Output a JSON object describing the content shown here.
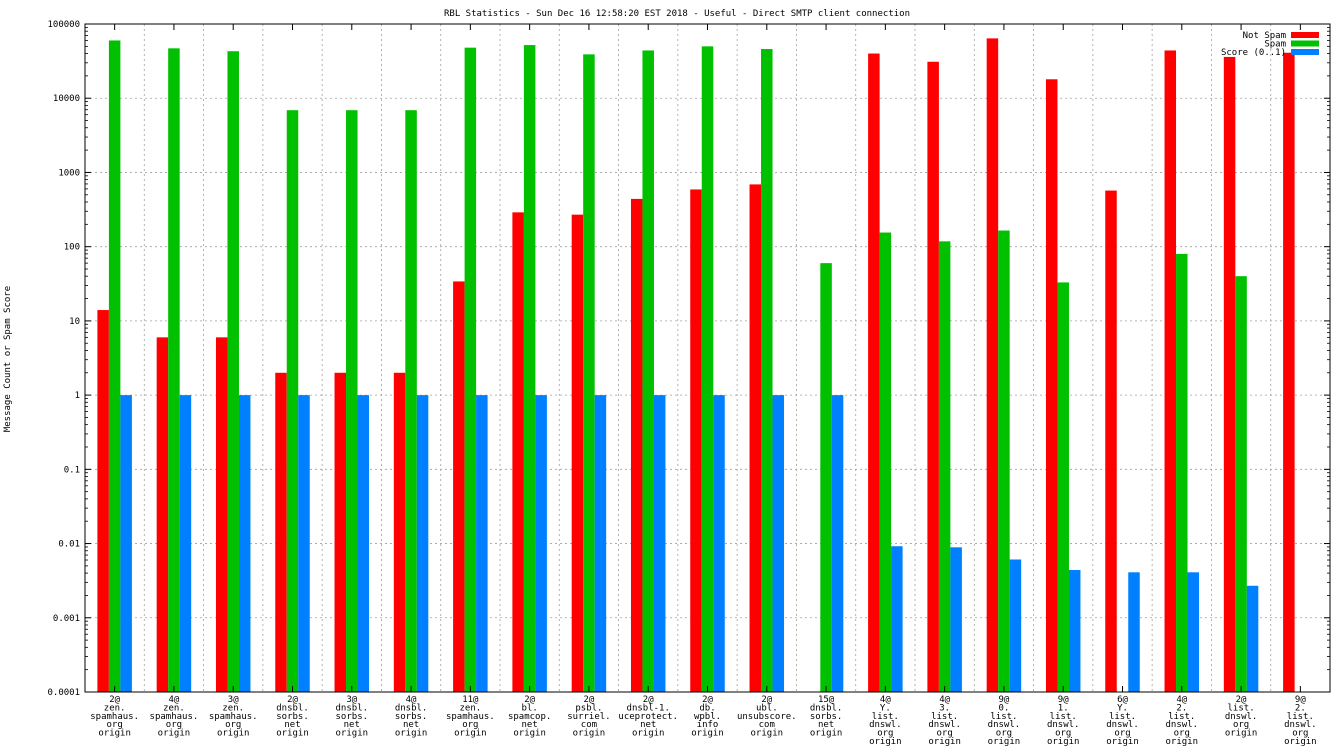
{
  "chart_data": {
    "type": "bar",
    "title": "RBL Statistics - Sun Dec 16 12:58:20 EST 2018 - Useful - Direct SMTP client connection",
    "xlabel": "",
    "ylabel": "Message Count or Spam Score",
    "yscale": "log",
    "ylim": [
      0.0001,
      100000
    ],
    "yticks": [
      "0.0001",
      "0.001",
      "0.01",
      "0.1",
      "1",
      "10",
      "100",
      "1000",
      "10000",
      "100000"
    ],
    "grid": true,
    "legend_position": "top-right",
    "categories": [
      [
        "2@",
        "zen.",
        "spamhaus.",
        "org",
        "origin"
      ],
      [
        "4@",
        "zen.",
        "spamhaus.",
        "org",
        "origin"
      ],
      [
        "3@",
        "zen.",
        "spamhaus.",
        "org",
        "origin"
      ],
      [
        "2@",
        "dnsbl.",
        "sorbs.",
        "net",
        "origin"
      ],
      [
        "3@",
        "dnsbl.",
        "sorbs.",
        "net",
        "origin"
      ],
      [
        "4@",
        "dnsbl.",
        "sorbs.",
        "net",
        "origin"
      ],
      [
        "11@",
        "zen.",
        "spamhaus.",
        "org",
        "origin"
      ],
      [
        "2@",
        "bl.",
        "spamcop.",
        "net",
        "origin"
      ],
      [
        "2@",
        "psbl.",
        "surriel.",
        "com",
        "origin"
      ],
      [
        "2@",
        "dnsbl-1.",
        "uceprotect.",
        "net",
        "origin"
      ],
      [
        "2@",
        "db.",
        "wpbl.",
        "info",
        "origin"
      ],
      [
        "2@",
        "ubl.",
        "unsubscore.",
        "com",
        "origin"
      ],
      [
        "15@",
        "dnsbl.",
        "sorbs.",
        "net",
        "origin"
      ],
      [
        "4@",
        "Y.",
        "list.",
        "dnswl.",
        "org",
        "origin"
      ],
      [
        "4@",
        "3.",
        "list.",
        "dnswl.",
        "org",
        "origin"
      ],
      [
        "9@",
        "0.",
        "list.",
        "dnswl.",
        "org",
        "origin"
      ],
      [
        "9@",
        "1.",
        "list.",
        "dnswl.",
        "org",
        "origin"
      ],
      [
        "6@",
        "Y.",
        "list.",
        "dnswl.",
        "org",
        "origin"
      ],
      [
        "4@",
        "2.",
        "list.",
        "dnswl.",
        "org",
        "origin"
      ],
      [
        "2@",
        "list.",
        "dnswl.",
        "org",
        "origin"
      ],
      [
        "9@",
        "2.",
        "list.",
        "dnswl.",
        "org",
        "origin"
      ]
    ],
    "series": [
      {
        "name": "Not Spam",
        "color": "#ff0000",
        "values": [
          14,
          6,
          6,
          2,
          2,
          2,
          34,
          290,
          270,
          440,
          590,
          690,
          null,
          40000,
          31000,
          64000,
          18000,
          570,
          44000,
          36000,
          41000
        ]
      },
      {
        "name": "Spam",
        "color": "#00c000",
        "values": [
          60000,
          47000,
          43000,
          6900,
          6900,
          6900,
          48000,
          52000,
          39000,
          44000,
          50000,
          46000,
          60,
          155,
          118,
          165,
          33,
          null,
          80,
          40,
          null
        ]
      },
      {
        "name": "Score (0..1)",
        "color": "#0080ff",
        "values": [
          1,
          1,
          1,
          1,
          1,
          1,
          1,
          1,
          1,
          1,
          1,
          1,
          1,
          0.0092,
          0.0089,
          0.0061,
          0.0044,
          0.0041,
          0.0041,
          0.0027,
          null
        ]
      }
    ]
  }
}
